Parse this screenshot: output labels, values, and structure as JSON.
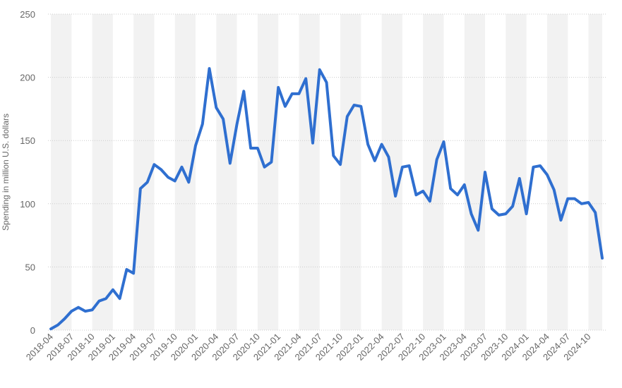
{
  "chart_data": {
    "type": "line",
    "title": "",
    "xlabel": "",
    "ylabel": "Spending in million U.S. dollars",
    "ylim": [
      0,
      250
    ],
    "yticks": [
      0,
      50,
      100,
      150,
      200,
      250
    ],
    "grid": "horizontal dotted",
    "legend": "none",
    "colors": {
      "line": "#2f6fd0",
      "band": "#f2f2f2",
      "grid": "#cccccc",
      "text": "#666666"
    },
    "x": [
      "2018-04",
      "2018-05",
      "2018-06",
      "2018-07",
      "2018-08",
      "2018-09",
      "2018-10",
      "2018-11",
      "2018-12",
      "2019-01",
      "2019-02",
      "2019-03",
      "2019-04",
      "2019-05",
      "2019-06",
      "2019-07",
      "2019-08",
      "2019-09",
      "2019-10",
      "2019-11",
      "2019-12",
      "2020-01",
      "2020-02",
      "2020-03",
      "2020-04",
      "2020-05",
      "2020-06",
      "2020-07",
      "2020-08",
      "2020-09",
      "2020-10",
      "2020-11",
      "2020-12",
      "2021-01",
      "2021-02",
      "2021-03",
      "2021-04",
      "2021-05",
      "2021-06",
      "2021-07",
      "2021-08",
      "2021-09",
      "2021-10",
      "2021-11",
      "2021-12",
      "2022-01",
      "2022-02",
      "2022-03",
      "2022-04",
      "2022-05",
      "2022-06",
      "2022-07",
      "2022-08",
      "2022-09",
      "2022-10",
      "2022-11",
      "2022-12",
      "2023-01",
      "2023-02",
      "2023-03",
      "2023-04",
      "2023-05",
      "2023-06",
      "2023-07",
      "2023-08",
      "2023-09",
      "2023-10",
      "2023-11",
      "2023-12",
      "2024-01",
      "2024-02",
      "2024-03",
      "2024-04",
      "2024-05",
      "2024-06",
      "2024-07",
      "2024-08",
      "2024-09",
      "2024-10",
      "2024-11",
      "2024-12"
    ],
    "xtick_labels": [
      "2018-04",
      "2018-07",
      "2018-10",
      "2019-01",
      "2019-04",
      "2019-07",
      "2019-10",
      "2020-01",
      "2020-04",
      "2020-07",
      "2020-10",
      "2021-01",
      "2021-04",
      "2021-07",
      "2021-10",
      "2022-01",
      "2022-04",
      "2022-07",
      "2022-10",
      "2023-01",
      "2023-04",
      "2023-07",
      "2023-10",
      "2024-01",
      "2024-04",
      "2024-07",
      "2024-10"
    ],
    "series": [
      {
        "values": [
          1,
          4,
          9,
          15,
          18,
          15,
          16,
          23,
          25,
          32,
          25,
          48,
          45,
          112,
          117,
          131,
          127,
          121,
          118,
          129,
          117,
          146,
          163,
          207,
          176,
          167,
          132,
          163,
          189,
          144,
          144,
          129,
          133,
          192,
          177,
          187,
          187,
          199,
          148,
          206,
          196,
          138,
          131,
          169,
          178,
          177,
          147,
          134,
          147,
          137,
          106,
          129,
          130,
          107,
          110,
          102,
          135,
          149,
          112,
          107,
          115,
          92,
          79,
          125,
          96,
          91,
          92,
          98,
          120,
          92,
          129,
          130,
          123,
          111,
          87,
          104,
          104,
          100,
          101,
          93,
          57
        ]
      }
    ]
  }
}
